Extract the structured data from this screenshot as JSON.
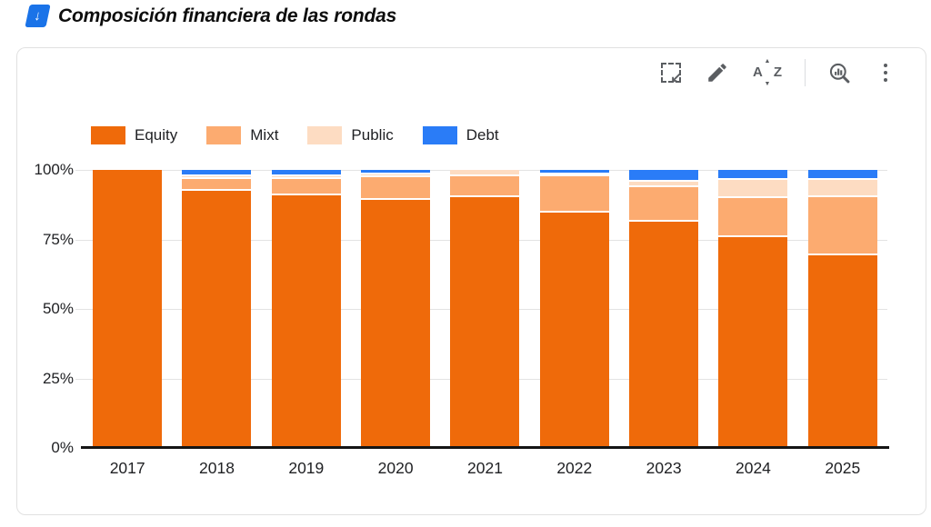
{
  "page": {
    "title": "Composición financiera de las rondas",
    "title_icon": "blue-down-arrow-icon",
    "title_icon_glyph": "↓"
  },
  "toolbar": {
    "icons": [
      "marquee-select-icon",
      "edit-pencil-icon",
      "sort-az-icon",
      "explore-chart-icon",
      "more-vertical-icon"
    ],
    "sort_icon": {
      "letter_a": "A",
      "letter_z": "Z",
      "tri_up": "▲",
      "tri_down": "▼"
    },
    "marquee_arrow_glyph": "↙"
  },
  "chart_data": {
    "type": "bar",
    "stacking": "percent",
    "title": "Composición financiera de las rondas",
    "categories": [
      "2017",
      "2018",
      "2019",
      "2020",
      "2021",
      "2022",
      "2023",
      "2024",
      "2025"
    ],
    "series": [
      {
        "name": "Equity",
        "color": "#ef6a0a",
        "values": [
          100,
          93,
          91.5,
          90,
          91,
          85.5,
          82,
          76.5,
          70
        ]
      },
      {
        "name": "Mixt",
        "color": "#fcab70",
        "values": [
          0,
          4.5,
          6,
          8,
          7.5,
          13,
          12.5,
          14,
          21
        ]
      },
      {
        "name": "Public",
        "color": "#fddcc2",
        "values": [
          0,
          1,
          1,
          1,
          1.5,
          0.5,
          2,
          6.5,
          6
        ]
      },
      {
        "name": "Debt",
        "color": "#2a7cf7",
        "values": [
          0,
          1.5,
          1.5,
          1,
          0,
          1,
          3.5,
          3,
          3
        ]
      }
    ],
    "y_ticks": [
      "100%",
      "75%",
      "50%",
      "25%",
      "0%"
    ],
    "ylim": [
      0,
      100
    ],
    "grid": true,
    "legend_position": "top-left"
  },
  "colors": {
    "grid_line": "#e3e3e3",
    "axis_line": "#151515",
    "icon_gray": "#5a5d61",
    "card_border": "#e1e1e1",
    "title_icon_bg": "#1a73e8",
    "separator_white": "#ffffff"
  }
}
